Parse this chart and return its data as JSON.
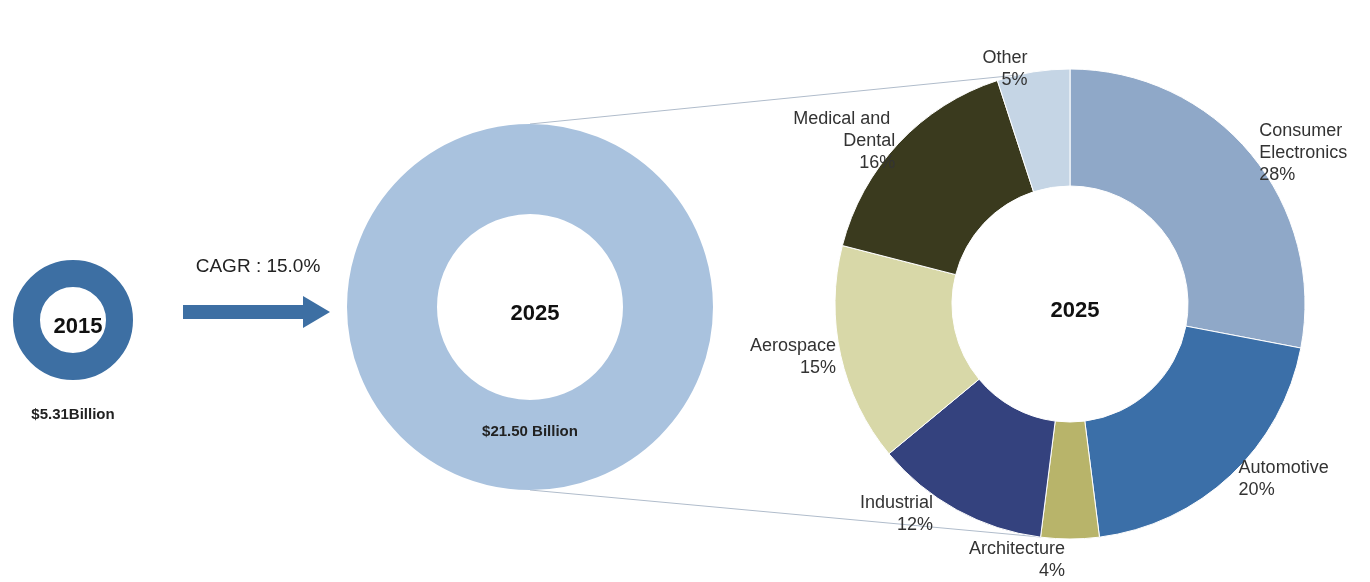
{
  "chart_data": [
    {
      "type": "other",
      "title": "2015",
      "color": "#3d6fa3",
      "annotations": [
        "$5.31Billion",
        "CAGR : 15.0%"
      ]
    },
    {
      "type": "other",
      "title": "2025",
      "color": "#a9c2de",
      "annotations": [
        "$21.50 Billion"
      ]
    },
    {
      "type": "donut",
      "title": "2025",
      "categories": [
        "Consumer Electronics",
        "Automotive",
        "Architecture",
        "Industrial",
        "Aerospace",
        "Medical and Dental",
        "Other"
      ],
      "values": [
        28,
        20,
        4,
        12,
        15,
        16,
        5
      ],
      "value_labels": [
        "28%",
        "20%",
        "4%",
        "12%",
        "15%",
        "16%",
        "5%"
      ],
      "colors": [
        "#8fa8c8",
        "#3b6fa8",
        "#b8b46a",
        "#34427e",
        "#d8d8a8",
        "#3a3a1e",
        "#c5d5e5"
      ],
      "legend": false
    }
  ]
}
